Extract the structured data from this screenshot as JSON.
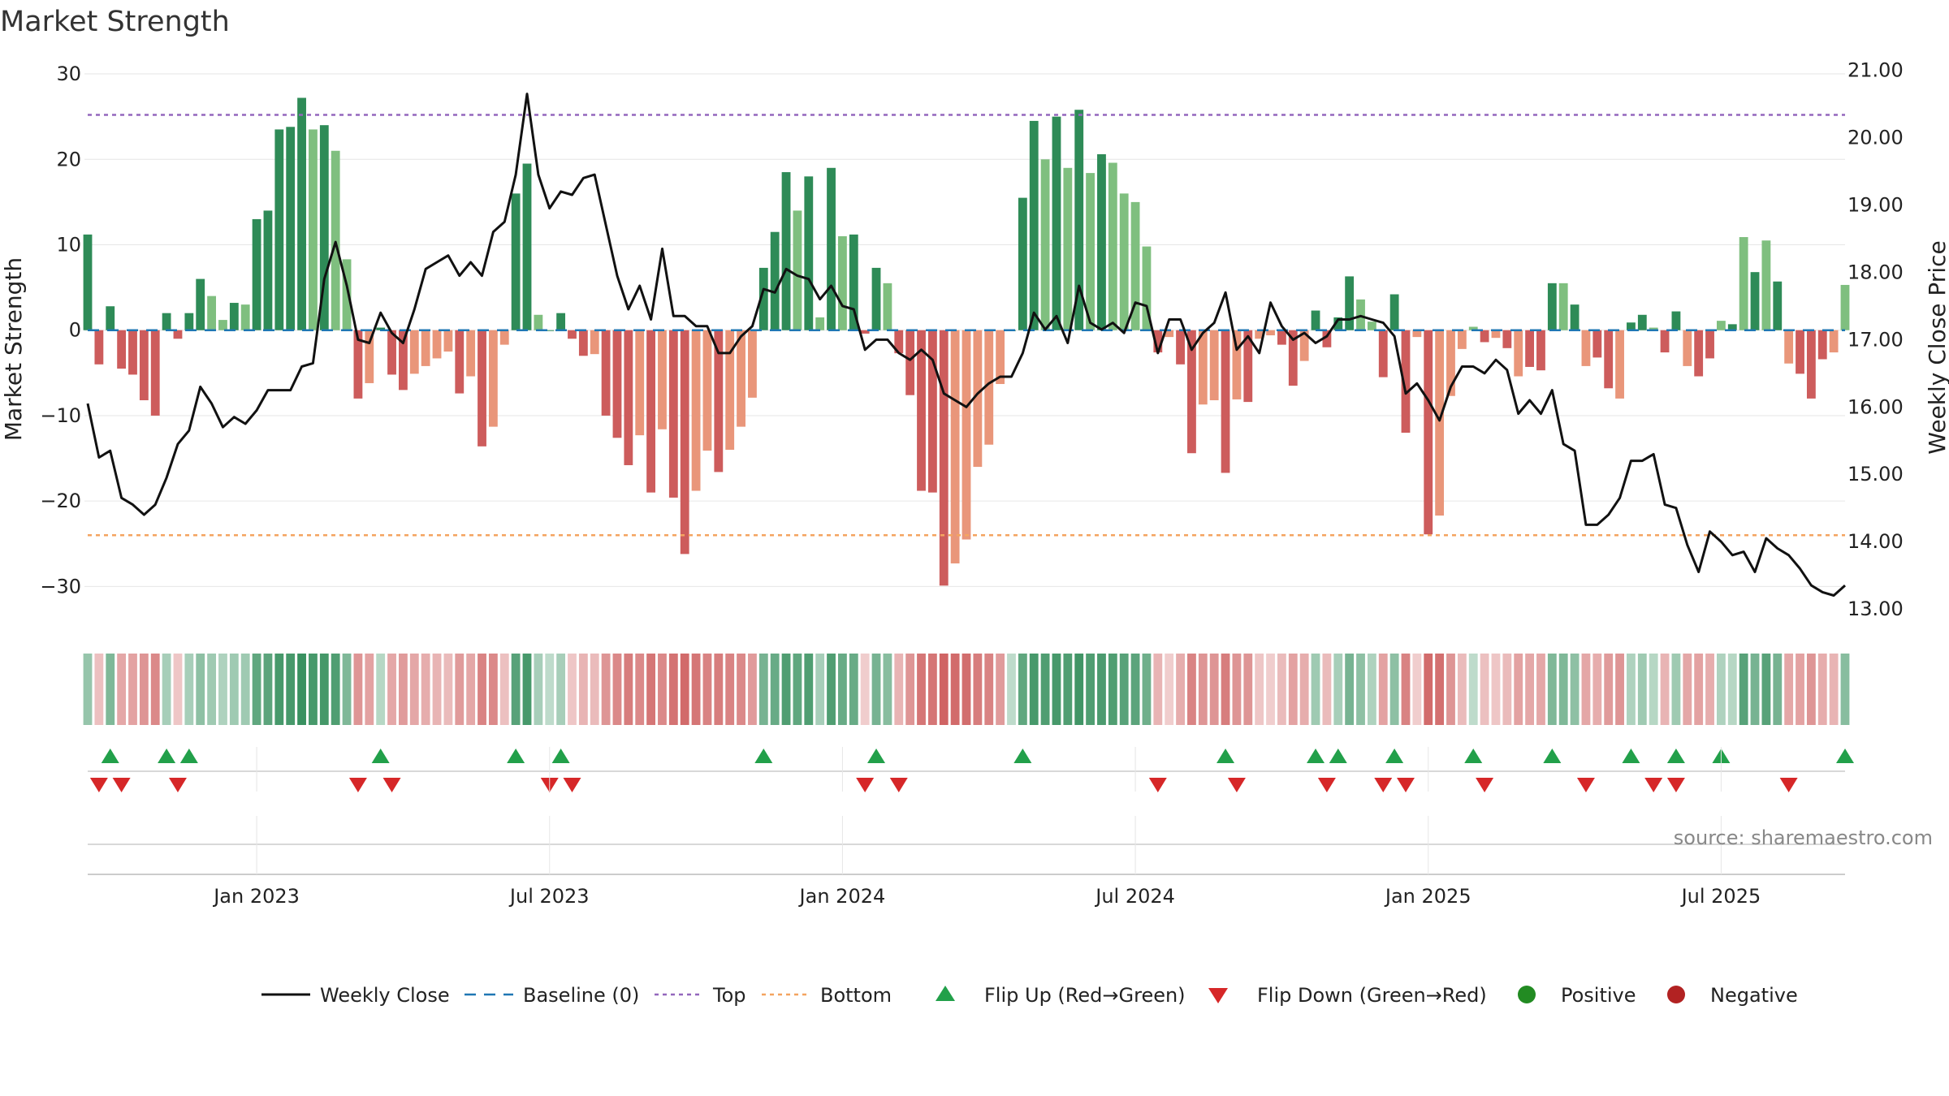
{
  "chart_data": {
    "type": "bar",
    "title": "Market Strength",
    "ylabel": "Market Strength",
    "y2label": "Weekly Close Price",
    "ylim": [
      -35,
      32
    ],
    "y2lim": [
      12.7,
      21.2
    ],
    "yticks": [
      "30",
      "20",
      "10",
      "0",
      "−10",
      "−20",
      "−30"
    ],
    "ytick_values": [
      30,
      20,
      10,
      0,
      -10,
      -20,
      -30
    ],
    "y2ticks": [
      "21.00",
      "20.00",
      "19.00",
      "18.00",
      "17.00",
      "16.00",
      "15.00",
      "14.00",
      "13.00"
    ],
    "y2tick_values": [
      21,
      20,
      19,
      18,
      17,
      16,
      15,
      14,
      13
    ],
    "xticks": [
      "Jan 2023",
      "Jul 2023",
      "Jan 2024",
      "Jul 2024",
      "Jan 2025",
      "Jul 2025"
    ],
    "xtick_index": [
      15,
      41,
      67,
      93,
      119,
      145
    ],
    "top_line": 25.2,
    "bottom_line": -24,
    "baseline": 0,
    "colors": {
      "strong_pos": "#2e8b57",
      "weak_pos": "#7fbf7f",
      "strong_neg": "#cd5c5c",
      "weak_neg": "#e9967a",
      "price": "#111111",
      "baseline": "#1f77b4",
      "top": "#9467bd",
      "bottom": "#f4a460",
      "flip_up": "#22a04a",
      "flip_down": "#d62728",
      "positive": "#228b22",
      "negative": "#b22222"
    },
    "strength": [
      11.2,
      -4,
      2.8,
      -4.5,
      -5.2,
      -8.2,
      -10,
      2,
      -1,
      2,
      6,
      4,
      1.2,
      3.2,
      3,
      13,
      14,
      23.5,
      23.8,
      27.2,
      23.5,
      24,
      21,
      8.3,
      -8,
      -6.2,
      0.3,
      -5.2,
      -7,
      -5.1,
      -4.2,
      -3.3,
      -2.5,
      -7.4,
      -5.4,
      -13.6,
      -11.3,
      -1.7,
      16,
      19.5,
      1.8,
      0,
      2,
      -1,
      -3,
      -2.8,
      -10,
      -12.6,
      -15.8,
      -12.3,
      -19,
      -11.6,
      -19.6,
      -26.2,
      -18.8,
      -14.1,
      -16.6,
      -14,
      -11.3,
      -7.9,
      7.3,
      11.5,
      18.5,
      14,
      18,
      1.5,
      19,
      11,
      11.2,
      -0.4,
      7.3,
      5.5,
      -2.7,
      -7.6,
      -18.8,
      -19,
      -29.9,
      -27.3,
      -24.5,
      -16,
      -13.4,
      -6.3,
      0,
      15.5,
      24.5,
      20,
      25,
      19,
      25.8,
      18.4,
      20.6,
      19.6,
      16,
      15,
      9.8,
      -2.6,
      -0.8,
      -4,
      -14.4,
      -8.7,
      -8.2,
      -16.7,
      -8.1,
      -8.4,
      -1,
      -0.6,
      -1.7,
      -6.5,
      -3.6,
      2.3,
      -2,
      1.5,
      6.3,
      3.6,
      1,
      -5.5,
      4.2,
      -12,
      -0.8,
      -23.9,
      -21.7,
      -7.7,
      -2.2,
      0.4,
      -1.4,
      -0.9,
      -2.1,
      -5.4,
      -4.3,
      -4.7,
      5.5,
      5.5,
      3,
      -4.2,
      -3.2,
      -6.8,
      -8,
      0.9,
      1.8,
      0.3,
      -2.6,
      2.2,
      -4.2,
      -5.4,
      -3.3,
      1.1,
      0.7,
      10.9,
      6.8,
      10.5,
      5.7,
      -3.9,
      -5.1,
      -8,
      -3.4,
      -2.6,
      5.3
    ],
    "strong": [
      1,
      1,
      1,
      1,
      1,
      1,
      1,
      1,
      1,
      1,
      1,
      0,
      0,
      1,
      0,
      1,
      1,
      1,
      1,
      1,
      0,
      1,
      0,
      0,
      1,
      0,
      1,
      1,
      1,
      0,
      0,
      0,
      0,
      1,
      0,
      1,
      0,
      0,
      1,
      1,
      0,
      1,
      1,
      1,
      1,
      0,
      1,
      1,
      1,
      0,
      1,
      0,
      1,
      1,
      0,
      0,
      1,
      0,
      0,
      0,
      1,
      1,
      1,
      0,
      1,
      0,
      1,
      0,
      1,
      1,
      1,
      0,
      1,
      1,
      1,
      1,
      1,
      0,
      0,
      0,
      0,
      0,
      1,
      1,
      1,
      0,
      1,
      0,
      1,
      0,
      1,
      0,
      0,
      0,
      0,
      1,
      0,
      1,
      1,
      0,
      0,
      1,
      0,
      1,
      0,
      0,
      1,
      1,
      0,
      1,
      1,
      1,
      1,
      0,
      0,
      1,
      1,
      1,
      0,
      1,
      0,
      0,
      0,
      0,
      1,
      0,
      1,
      0,
      1,
      1,
      1,
      0,
      1,
      0,
      1,
      1,
      0,
      1,
      1,
      0,
      1,
      1,
      0,
      1,
      1,
      0,
      1,
      0,
      1,
      0,
      1,
      0,
      1,
      1,
      1,
      0,
      0,
      1
    ],
    "price": [
      16.05,
      15.25,
      15.35,
      14.65,
      14.55,
      14.4,
      14.55,
      14.95,
      15.45,
      15.65,
      16.3,
      16.05,
      15.7,
      15.85,
      15.75,
      15.95,
      16.25,
      16.25,
      16.25,
      16.6,
      16.65,
      17.9,
      18.45,
      17.8,
      17.0,
      16.95,
      17.4,
      17.1,
      16.95,
      17.45,
      18.05,
      18.15,
      18.25,
      17.95,
      18.15,
      17.95,
      18.6,
      18.75,
      19.45,
      20.65,
      19.45,
      18.95,
      19.2,
      19.15,
      19.4,
      19.45,
      18.7,
      17.95,
      17.45,
      17.8,
      17.3,
      18.35,
      17.35,
      17.35,
      17.2,
      17.2,
      16.8,
      16.8,
      17.05,
      17.2,
      17.75,
      17.7,
      18.05,
      17.95,
      17.9,
      17.6,
      17.8,
      17.5,
      17.45,
      16.85,
      17.0,
      17.0,
      16.8,
      16.7,
      16.85,
      16.7,
      16.2,
      16.1,
      16.0,
      16.2,
      16.35,
      16.45,
      16.45,
      16.8,
      17.4,
      17.15,
      17.35,
      16.95,
      17.8,
      17.25,
      17.15,
      17.25,
      17.1,
      17.55,
      17.5,
      16.8,
      17.3,
      17.3,
      16.85,
      17.1,
      17.25,
      17.7,
      16.85,
      17.05,
      16.8,
      17.55,
      17.2,
      17.0,
      17.1,
      16.95,
      17.05,
      17.3,
      17.3,
      17.35,
      17.3,
      17.25,
      17.05,
      16.2,
      16.35,
      16.1,
      15.8,
      16.3,
      16.6,
      16.6,
      16.5,
      16.7,
      16.55,
      15.9,
      16.1,
      15.9,
      16.25,
      15.45,
      15.35,
      14.25,
      14.25,
      14.4,
      14.65,
      15.2,
      15.2,
      15.3,
      14.55,
      14.5,
      13.95,
      13.55,
      14.15,
      14.0,
      13.8,
      13.85,
      13.55,
      14.05,
      13.9,
      13.8,
      13.6,
      13.35,
      13.25,
      13.2,
      13.35
    ],
    "band": [
      0.4,
      0.25,
      0.55,
      0.45,
      0.5,
      0.6,
      0.7,
      0.3,
      0.2,
      0.3,
      0.45,
      0.35,
      0.25,
      0.35,
      0.35,
      0.75,
      0.78,
      0.9,
      0.9,
      1,
      0.9,
      0.92,
      0.85,
      0.55,
      0.6,
      0.5,
      0.2,
      0.45,
      0.55,
      0.45,
      0.4,
      0.35,
      0.3,
      0.55,
      0.45,
      0.75,
      0.7,
      0.25,
      0.8,
      0.9,
      0.3,
      0.15,
      0.3,
      0.2,
      0.35,
      0.3,
      0.6,
      0.7,
      0.8,
      0.7,
      0.85,
      0.7,
      0.88,
      0.95,
      0.85,
      0.75,
      0.8,
      0.75,
      0.7,
      0.55,
      0.6,
      0.7,
      0.85,
      0.75,
      0.85,
      0.3,
      0.85,
      0.7,
      0.7,
      0.15,
      0.6,
      0.5,
      0.35,
      0.6,
      0.85,
      0.85,
      1,
      0.95,
      0.92,
      0.8,
      0.75,
      0.55,
      0.15,
      0.75,
      0.9,
      0.85,
      0.9,
      0.85,
      0.95,
      0.85,
      0.88,
      0.85,
      0.8,
      0.78,
      0.65,
      0.35,
      0.15,
      0.4,
      0.75,
      0.6,
      0.6,
      0.8,
      0.6,
      0.6,
      0.2,
      0.15,
      0.3,
      0.5,
      0.4,
      0.35,
      0.3,
      0.3,
      0.6,
      0.45,
      0.25,
      0.5,
      0.45,
      0.75,
      0.15,
      0.95,
      0.9,
      0.6,
      0.3,
      0.15,
      0.25,
      0.2,
      0.3,
      0.5,
      0.45,
      0.45,
      0.55,
      0.55,
      0.45,
      0.45,
      0.4,
      0.55,
      0.6,
      0.25,
      0.35,
      0.2,
      0.35,
      0.35,
      0.45,
      0.5,
      0.4,
      0.25,
      0.2,
      0.8,
      0.6,
      0.8,
      0.6,
      0.45,
      0.5,
      0.6,
      0.4,
      0.35,
      0.5
    ],
    "flip_up_index": [
      2,
      7,
      9,
      26,
      38,
      42,
      60,
      70,
      83,
      101,
      109,
      111,
      116,
      123,
      130,
      137,
      141,
      145,
      156
    ],
    "flip_down_index": [
      1,
      3,
      8,
      24,
      27,
      41,
      43,
      69,
      72,
      95,
      102,
      110,
      115,
      117,
      124,
      133,
      139,
      141,
      151
    ],
    "legend": [
      {
        "label": "Weekly Close",
        "kind": "line"
      },
      {
        "label": "Baseline (0)",
        "kind": "dash"
      },
      {
        "label": "Top",
        "kind": "dot-purple"
      },
      {
        "label": "Bottom",
        "kind": "dot-orange"
      },
      {
        "label": "Flip Up (Red→Green)",
        "kind": "tri-up"
      },
      {
        "label": "Flip Down (Green→Red)",
        "kind": "tri-down"
      },
      {
        "label": "Positive",
        "kind": "circle-pos"
      },
      {
        "label": "Negative",
        "kind": "circle-neg"
      }
    ],
    "source": "source: sharemaestro.com"
  }
}
